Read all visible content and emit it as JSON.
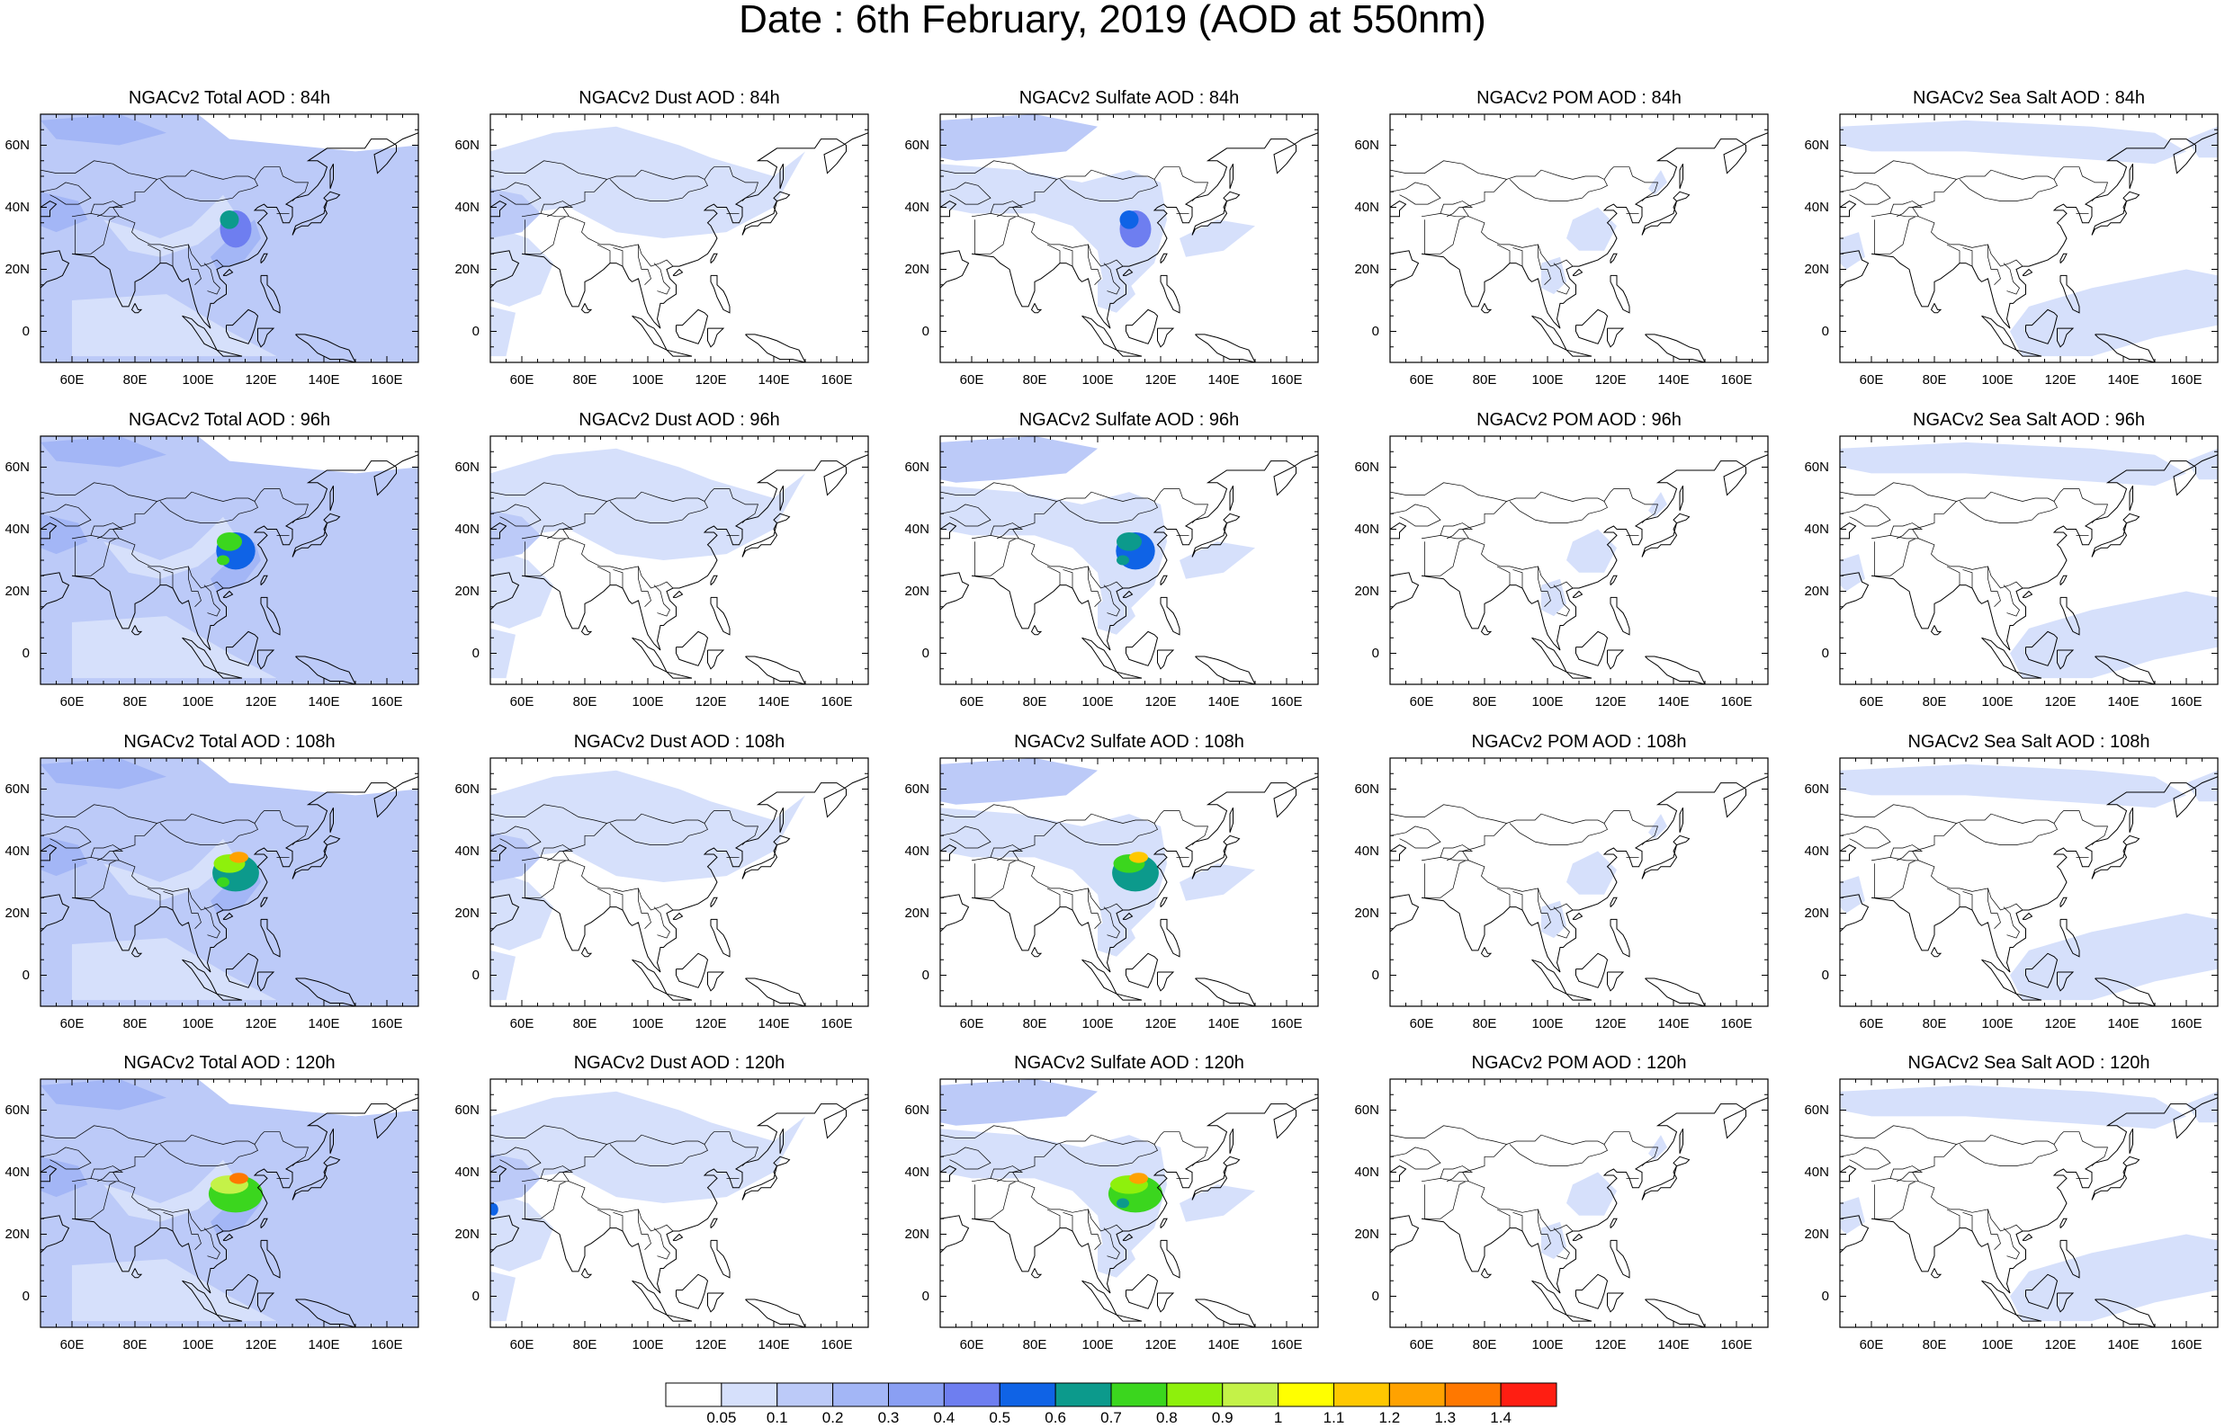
{
  "title": "Date : 6th February, 2019 (AOD at 550nm)",
  "x_ticks": [
    "60E",
    "80E",
    "100E",
    "120E",
    "140E",
    "160E"
  ],
  "y_ticks": [
    "60N",
    "40N",
    "20N",
    "0"
  ],
  "panels": [
    [
      "NGACv2 Total AOD : 84h",
      "NGACv2 Dust AOD : 84h",
      "NGACv2 Sulfate AOD : 84h",
      "NGACv2 POM AOD : 84h",
      "NGACv2 Sea Salt AOD : 84h"
    ],
    [
      "NGACv2 Total AOD : 96h",
      "NGACv2 Dust AOD : 96h",
      "NGACv2 Sulfate AOD : 96h",
      "NGACv2 POM AOD : 96h",
      "NGACv2 Sea Salt AOD : 96h"
    ],
    [
      "NGACv2 Total AOD : 108h",
      "NGACv2 Dust AOD : 108h",
      "NGACv2 Sulfate AOD : 108h",
      "NGACv2 POM AOD : 108h",
      "NGACv2 Sea Salt AOD : 108h"
    ],
    [
      "NGACv2 Total AOD : 120h",
      "NGACv2 Dust AOD : 120h",
      "NGACv2 Sulfate AOD : 120h",
      "NGACv2 POM AOD : 120h",
      "NGACv2 Sea Salt  AOD : 120h"
    ]
  ],
  "colorbar": {
    "labels": [
      "0.05",
      "0.1",
      "0.2",
      "0.3",
      "0.4",
      "0.5",
      "0.6",
      "0.7",
      "0.8",
      "0.9",
      "1",
      "1.1",
      "1.2",
      "1.3",
      "1.4"
    ],
    "colors": [
      "#ffffff",
      "#d6e0fb",
      "#bccaf8",
      "#a3b6f6",
      "#8a9ff3",
      "#6e7ef0",
      "#0f63e6",
      "#0c9a8c",
      "#3bd61e",
      "#8ef00c",
      "#c4f248",
      "#ffff00",
      "#ffc800",
      "#ffa200",
      "#ff7800",
      "#ff1e12"
    ]
  }
}
